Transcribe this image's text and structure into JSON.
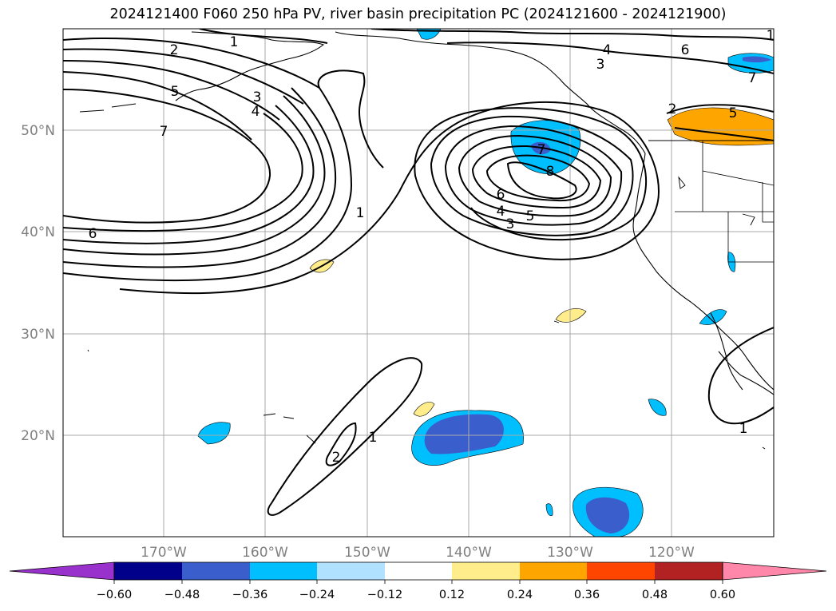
{
  "title": "2024121400 F060 250 hPa PV, river basin precipitation PC (2024121600 - 2024121900)",
  "map": {
    "lon_range": [
      -180,
      -110
    ],
    "lat_range": [
      10,
      60
    ],
    "lat_ticks": [
      {
        "value": 20,
        "label": "20°N"
      },
      {
        "value": 30,
        "label": "30°N"
      },
      {
        "value": 40,
        "label": "40°N"
      },
      {
        "value": 50,
        "label": "50°N"
      }
    ],
    "lon_ticks": [
      {
        "value": -170,
        "label": "170°W"
      },
      {
        "value": -160,
        "label": "160°W"
      },
      {
        "value": -150,
        "label": "150°W"
      },
      {
        "value": -140,
        "label": "140°W"
      },
      {
        "value": -130,
        "label": "130°W"
      },
      {
        "value": -120,
        "label": "120°W"
      }
    ],
    "contour_labels": [
      "1",
      "2",
      "3",
      "4",
      "5",
      "6",
      "7",
      "8"
    ]
  },
  "colorbar": {
    "extend": "both",
    "ticks": [
      "−0.60",
      "−0.48",
      "−0.36",
      "−0.24",
      "−0.12",
      "0.12",
      "0.24",
      "0.36",
      "0.48",
      "0.60"
    ],
    "colors": {
      "under": "#9932cc",
      "bins": [
        "#00008b",
        "#3a5fcd",
        "#00bfff",
        "#b0e2ff",
        "#ffffff",
        "#ffec8b",
        "#ffa500",
        "#ff4500",
        "#b22222"
      ],
      "over": "#ff88aa"
    }
  }
}
